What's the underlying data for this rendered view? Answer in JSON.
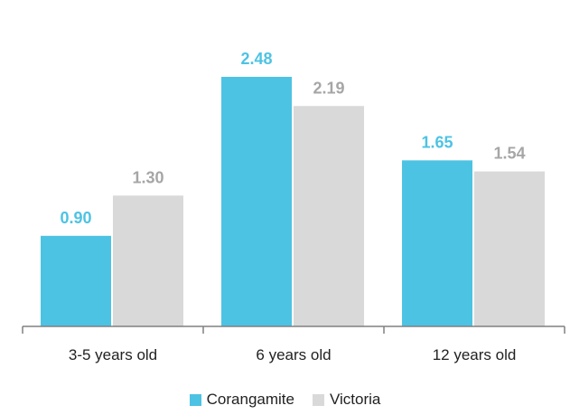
{
  "chart_data": {
    "type": "bar",
    "categories": [
      "3-5 years old",
      "6 years old",
      "12 years old"
    ],
    "series": [
      {
        "name": "Corangamite",
        "values": [
          0.9,
          2.48,
          1.65
        ],
        "labels": [
          "0.90",
          "2.48",
          "1.65"
        ],
        "color": "#4dc3e3"
      },
      {
        "name": "Victoria",
        "values": [
          1.3,
          2.19,
          1.54
        ],
        "labels": [
          "1.30",
          "2.19",
          "1.54"
        ],
        "color": "#d9d9d9"
      }
    ],
    "ylim": [
      0,
      2.5
    ],
    "grid": false,
    "legend": "bottom",
    "axis_color": "#808080",
    "label_colors": {
      "Corangamite": "#4dc3e3",
      "Victoria": "#a6a6a6"
    },
    "title": "",
    "xlabel": "",
    "ylabel": ""
  }
}
